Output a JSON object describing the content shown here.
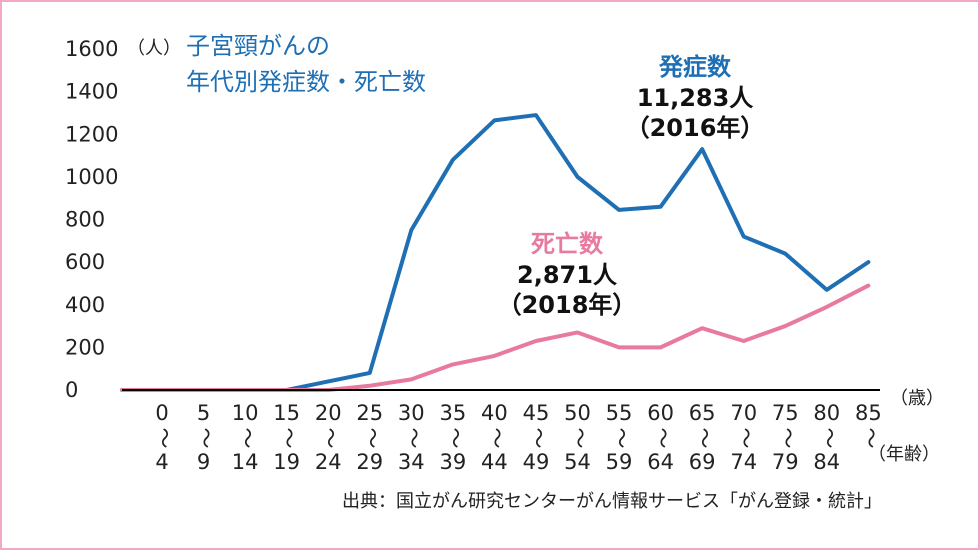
{
  "chart_data": {
    "type": "line",
    "title_line1": "子宮頸がんの",
    "title_line2": "年代別発症数・死亡数",
    "y_unit": "（人）",
    "x_unit_upper": "（歳）",
    "x_unit_lower": "（年齢）",
    "ylim": [
      0,
      1600
    ],
    "yticks": [
      "1600",
      "1400",
      "1200",
      "1000",
      "800",
      "600",
      "400",
      "200",
      "0"
    ],
    "x_start_labels": [
      "0",
      "5",
      "10",
      "15",
      "20",
      "25",
      "30",
      "35",
      "40",
      "45",
      "50",
      "55",
      "60",
      "65",
      "70",
      "75",
      "80",
      "85"
    ],
    "x_end_labels": [
      "4",
      "9",
      "14",
      "19",
      "24",
      "29",
      "34",
      "39",
      "44",
      "49",
      "54",
      "59",
      "64",
      "69",
      "74",
      "79",
      "84",
      ""
    ],
    "x_tilde": "〜",
    "series": [
      {
        "name": "発症数",
        "color": "#1f6fb5",
        "values": [
          0,
          0,
          0,
          0,
          40,
          80,
          750,
          1080,
          1265,
          1290,
          1000,
          845,
          860,
          1130,
          720,
          640,
          470,
          600
        ]
      },
      {
        "name": "死亡数",
        "color": "#e87aa0",
        "values": [
          0,
          0,
          0,
          0,
          0,
          20,
          50,
          120,
          160,
          230,
          270,
          200,
          200,
          290,
          230,
          300,
          390,
          490
        ]
      }
    ],
    "annotations": {
      "incidence": {
        "label": "発症数",
        "count": "11,283人",
        "year": "（2016年）",
        "color": "#1f6fb5"
      },
      "deaths": {
        "label": "死亡数",
        "count": "2,871人",
        "year": "（2018年）",
        "color": "#e87aa0"
      }
    },
    "grid": false
  },
  "source": "出典：国立がん研究センターがん情報サービス「がん登録・統計」"
}
